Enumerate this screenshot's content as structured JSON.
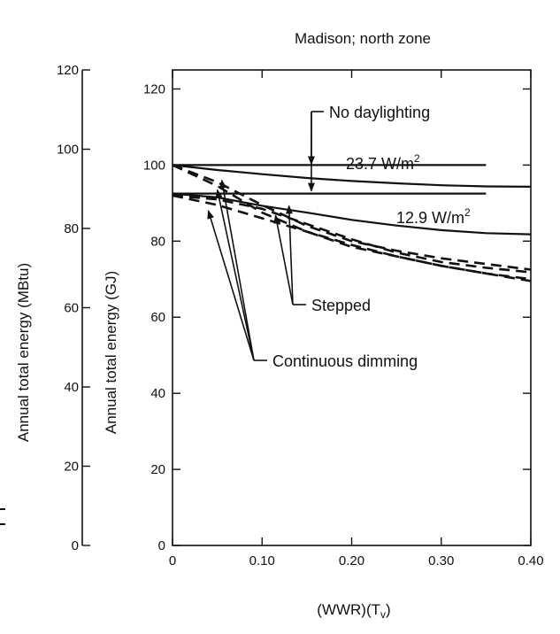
{
  "chart_data": {
    "type": "line",
    "title": "Madison; north zone",
    "xlabel": "(WWR)(T",
    "xlabel_sub": "v",
    "xlabel_close": ")",
    "ylabel_left": "Annual total energy (MBtu)",
    "ylabel_right": "Annual total energy (GJ)",
    "xlim": [
      0,
      0.4
    ],
    "ylim_gj": [
      0,
      125
    ],
    "ylim_mbtu": [
      0,
      120
    ],
    "x_ticks": [
      0,
      0.1,
      0.2,
      0.3,
      0.4
    ],
    "x_tick_labels": [
      "0",
      "0.10",
      "0.20",
      "0.30",
      "0.40"
    ],
    "y_ticks_gj": [
      0,
      20,
      40,
      60,
      80,
      100,
      120
    ],
    "y_tick_labels_gj": [
      "0",
      "20",
      "40",
      "60",
      "80",
      "100",
      "120"
    ],
    "y_ticks_mbtu": [
      0,
      20,
      40,
      60,
      80,
      100,
      120
    ],
    "y_tick_labels_mbtu": [
      "0",
      "20",
      "40",
      "60",
      "80",
      "100",
      "120"
    ],
    "series": [
      {
        "style": "solid",
        "x": [
          0,
          0.35
        ],
        "y": [
          100,
          100
        ]
      },
      {
        "style": "solid",
        "x": [
          0,
          0.35
        ],
        "y": [
          92.5,
          92.5
        ]
      },
      {
        "style": "solid",
        "x": [
          0,
          0.05,
          0.1,
          0.15,
          0.2,
          0.25,
          0.3,
          0.35,
          0.4
        ],
        "y": [
          100,
          98.7,
          97.6,
          96.6,
          95.8,
          95.2,
          94.7,
          94.4,
          94.3
        ]
      },
      {
        "style": "solid",
        "x": [
          0,
          0.05,
          0.1,
          0.15,
          0.2,
          0.25,
          0.3,
          0.35,
          0.4
        ],
        "y": [
          92.5,
          91.5,
          89.3,
          87.5,
          85.6,
          84.1,
          82.9,
          82.1,
          81.8
        ]
      },
      {
        "style": "dashed",
        "x": [
          0,
          0.05,
          0.1,
          0.15,
          0.2,
          0.25,
          0.3,
          0.35,
          0.4
        ],
        "y": [
          100,
          95.5,
          89.5,
          84,
          80,
          77.5,
          75.5,
          74,
          72.5
        ]
      },
      {
        "style": "dashed",
        "x": [
          0,
          0.05,
          0.1,
          0.15,
          0.2,
          0.25,
          0.3,
          0.35,
          0.4
        ],
        "y": [
          100,
          94.5,
          87.5,
          82.5,
          78.5,
          76,
          73.5,
          71.5,
          69.5
        ]
      },
      {
        "style": "dashed",
        "x": [
          0,
          0.05,
          0.1,
          0.15,
          0.2,
          0.25,
          0.3,
          0.35,
          0.4
        ],
        "y": [
          92,
          91,
          88.5,
          84.5,
          80.5,
          77,
          74.5,
          73,
          71.8
        ]
      },
      {
        "style": "dashed",
        "x": [
          0,
          0.05,
          0.1,
          0.15,
          0.2,
          0.25,
          0.3,
          0.35,
          0.4
        ],
        "y": [
          92,
          89.5,
          86,
          82.5,
          79,
          76,
          73.5,
          71.5,
          70
        ]
      }
    ],
    "annotations": [
      {
        "text": "No daylighting",
        "arrows_to": [
          [
            0.155,
            100.2
          ],
          [
            0.155,
            93.2
          ]
        ]
      },
      {
        "text": "23.7 W/m",
        "sup": "2"
      },
      {
        "text": "12.9 W/m",
        "sup": "2"
      },
      {
        "text": "Stepped",
        "arrows_to": [
          [
            0.13,
            89.3
          ],
          [
            0.115,
            86.8
          ]
        ]
      },
      {
        "text": "Continuous dimming",
        "arrows_to": [
          [
            0.05,
            93.5
          ],
          [
            0.055,
            96
          ],
          [
            0.04,
            88
          ]
        ]
      }
    ]
  }
}
